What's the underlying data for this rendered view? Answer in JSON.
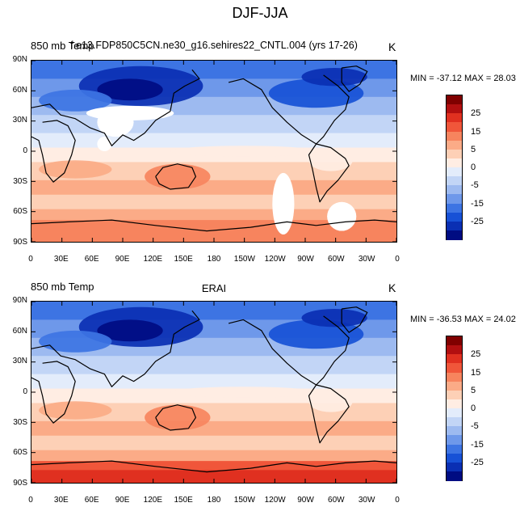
{
  "figure": {
    "title": "DJF-JJA"
  },
  "panels": [
    {
      "left_title": "850 mb Temp",
      "center_title": "f.e13.FDP850C5CN.ne30_g16.sehires22_CNTL.004 (yrs 17-26)",
      "units": "K",
      "stats": "MIN = -37.12 MAX =  28.03",
      "has_missing": true
    },
    {
      "left_title": "850 mb Temp",
      "center_title": "ERAI",
      "units": "K",
      "stats": "MIN = -36.53 MAX = 24.02",
      "has_missing": false
    }
  ],
  "axes": {
    "lat_labels": [
      "90N",
      "60N",
      "30N",
      "0",
      "30S",
      "60S",
      "90S"
    ],
    "lon_labels": [
      "0",
      "30E",
      "60E",
      "90E",
      "120E",
      "150E",
      "180",
      "150W",
      "120W",
      "90W",
      "60W",
      "30W",
      "0"
    ]
  },
  "colorbar": {
    "labels": [
      "25",
      "15",
      "5",
      "0",
      "-5",
      "-15",
      "-25"
    ],
    "colors": [
      "#800000",
      "#b20f10",
      "#e03020",
      "#f0563a",
      "#f7845e",
      "#fbab87",
      "#fdd0b6",
      "#ffede3",
      "#e3ecfb",
      "#c2d5f6",
      "#9dbaf0",
      "#6e98ea",
      "#3d74e3",
      "#1751d6",
      "#0a2fb3",
      "#000c82"
    ]
  },
  "chart_data": [
    {
      "type": "heatmap",
      "title": "DJF-JJA",
      "subtitle": "f.e13.FDP850C5CN.ne30_g16.sehires22_CNTL.004 (yrs 17-26)",
      "variable": "850 mb Temp",
      "units": "K",
      "min": -37.12,
      "max": 28.03,
      "x_ticks": [
        "0",
        "30E",
        "60E",
        "90E",
        "120E",
        "150E",
        "180",
        "150W",
        "120W",
        "90W",
        "60W",
        "30W",
        "0"
      ],
      "y_ticks": [
        "90N",
        "60N",
        "30N",
        "0",
        "30S",
        "60S",
        "90S"
      ],
      "colorbar_ticks": [
        25,
        15,
        5,
        0,
        -5,
        -15,
        -25
      ],
      "xlim": [
        0,
        360
      ],
      "ylim": [
        -90,
        90
      ]
    },
    {
      "type": "heatmap",
      "title": "DJF-JJA",
      "subtitle": "ERAI",
      "variable": "850 mb Temp",
      "units": "K",
      "min": -36.53,
      "max": 24.02,
      "x_ticks": [
        "0",
        "30E",
        "60E",
        "90E",
        "120E",
        "150E",
        "180",
        "150W",
        "120W",
        "90W",
        "60W",
        "30W",
        "0"
      ],
      "y_ticks": [
        "90N",
        "60N",
        "30N",
        "0",
        "30S",
        "60S",
        "90S"
      ],
      "colorbar_ticks": [
        25,
        15,
        5,
        0,
        -5,
        -15,
        -25
      ],
      "xlim": [
        0,
        360
      ],
      "ylim": [
        -90,
        90
      ]
    }
  ]
}
